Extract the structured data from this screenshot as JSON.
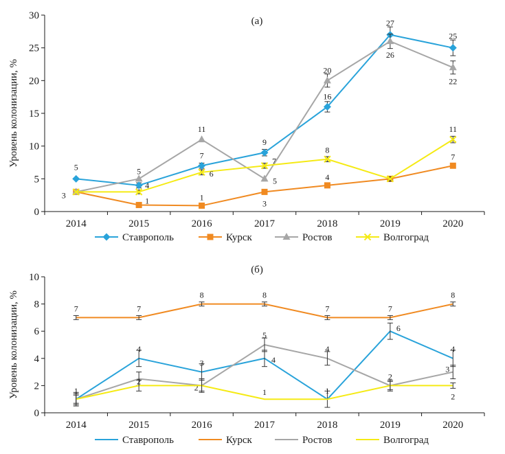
{
  "chart_data": [
    {
      "panel_label": "(а)",
      "type": "line",
      "x": [
        "2014",
        "2015",
        "2016",
        "2017",
        "2018",
        "2019",
        "2020"
      ],
      "ylabel": "Уровень колонизации, %",
      "ylim": [
        0,
        30
      ],
      "yticks": [
        "0",
        "5",
        "10",
        "15",
        "20",
        "25",
        "30"
      ],
      "legend_position": "bottom",
      "grid": false,
      "series": [
        {
          "name": "Ставрополь",
          "color": "#29a3da",
          "marker": "diamond",
          "values": [
            5,
            4,
            7,
            9,
            16,
            27,
            25
          ],
          "errors": [
            0,
            0.4,
            0.4,
            0.5,
            0.8,
            1.2,
            1.2
          ],
          "labels": [
            "5",
            "4",
            "7",
            "9",
            "16",
            "27",
            "25"
          ]
        },
        {
          "name": "Курск",
          "color": "#f08a21",
          "marker": "square",
          "values": [
            3,
            1,
            0.9,
            3,
            4,
            5,
            7
          ],
          "errors": [
            0,
            0,
            0,
            0,
            0,
            0,
            0
          ],
          "labels": [
            "3",
            "1",
            "1",
            "3",
            "4",
            "5",
            "7"
          ]
        },
        {
          "name": "Ростов",
          "color": "#a6a6a6",
          "marker": "triangle",
          "values": [
            3,
            5,
            11,
            5,
            20,
            26,
            22
          ],
          "errors": [
            0,
            0,
            0,
            0,
            1,
            1.1,
            1
          ],
          "labels": [
            "",
            "5",
            "11",
            "5",
            "20",
            "26",
            "22"
          ]
        },
        {
          "name": "Волгоград",
          "color": "#f5ea14",
          "marker": "x",
          "values": [
            3,
            3,
            6,
            7,
            8,
            5,
            11
          ],
          "errors": [
            0,
            0.3,
            0.4,
            0.4,
            0.4,
            0.3,
            0.5
          ],
          "labels": [
            "",
            "",
            "6",
            "7",
            "8",
            "",
            "11"
          ]
        }
      ]
    },
    {
      "panel_label": "(б)",
      "type": "line",
      "x": [
        "2014",
        "2015",
        "2016",
        "2017",
        "2018",
        "2019",
        "2020"
      ],
      "ylabel": "Уровень колонизации, %",
      "ylim": [
        0,
        10
      ],
      "yticks": [
        "0",
        "2",
        "4",
        "6",
        "8",
        "10"
      ],
      "legend_position": "bottom",
      "grid": false,
      "series": [
        {
          "name": "Ставрополь",
          "color": "#29a3da",
          "values": [
            1,
            4,
            3,
            4,
            1,
            6,
            4
          ],
          "errors": [
            0.5,
            0.6,
            0.6,
            0.6,
            0.6,
            0.6,
            0.6
          ],
          "labels": [
            "1",
            "4",
            "3",
            "4",
            "1",
            "6",
            "4"
          ]
        },
        {
          "name": "Курск",
          "color": "#f08a21",
          "values": [
            7,
            7,
            8,
            8,
            7,
            7,
            8
          ],
          "errors": [
            0.15,
            0.15,
            0.15,
            0.15,
            0.15,
            0.15,
            0.15
          ],
          "labels": [
            "7",
            "7",
            "8",
            "8",
            "7",
            "7",
            "8"
          ]
        },
        {
          "name": "Ростов",
          "color": "#a6a6a6",
          "values": [
            1,
            2.5,
            2,
            5,
            4,
            2,
            3
          ],
          "errors": [
            0.4,
            0.5,
            0.5,
            0.5,
            0.5,
            0.4,
            0.5
          ],
          "labels": [
            "",
            "2",
            "2",
            "5",
            "4",
            "2",
            "3"
          ]
        },
        {
          "name": "Волгоград",
          "color": "#f5ea14",
          "values": [
            1,
            2,
            2,
            1,
            1,
            2,
            2
          ],
          "errors": [
            0.3,
            0.4,
            0.4,
            0,
            0,
            0.3,
            0.2
          ],
          "labels": [
            "",
            "",
            "",
            "1",
            "",
            "",
            "2"
          ]
        }
      ]
    }
  ]
}
